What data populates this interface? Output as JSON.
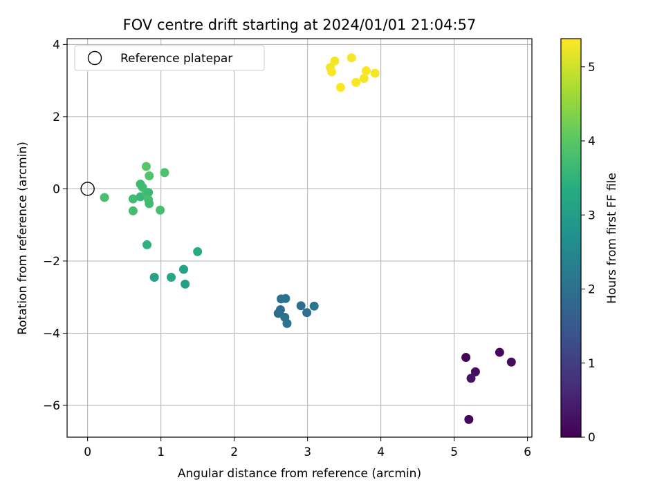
{
  "chart_data": {
    "type": "scatter",
    "title": "FOV centre drift starting at 2024/01/01 21:04:57",
    "xlabel": "Angular distance from reference (arcmin)",
    "ylabel": "Rotation from reference (arcmin)",
    "xlim": [
      -0.28,
      6.06
    ],
    "ylim": [
      -6.88,
      4.16
    ],
    "xticks": [
      0,
      1,
      2,
      3,
      4,
      5,
      6
    ],
    "yticks": [
      -6,
      -4,
      -2,
      0,
      2,
      4
    ],
    "grid": true,
    "legend": {
      "position": "top-left",
      "entries": [
        "Reference platepar"
      ]
    },
    "reference_point": {
      "x": 0,
      "y": 0
    },
    "colorbar": {
      "label": "Hours from first FF file",
      "colormap": "viridis",
      "range": [
        0,
        5.38
      ],
      "ticks": [
        0,
        1,
        2,
        3,
        4,
        5
      ]
    },
    "series": [
      {
        "points": [
          {
            "x": 5.16,
            "y": -4.67,
            "c": 0.05
          },
          {
            "x": 5.62,
            "y": -4.53,
            "c": 0.1
          },
          {
            "x": 5.78,
            "y": -4.8,
            "c": 0.15
          },
          {
            "x": 5.29,
            "y": -5.07,
            "c": 0.2
          },
          {
            "x": 5.23,
            "y": -5.25,
            "c": 0.3
          },
          {
            "x": 5.2,
            "y": -6.39,
            "c": 0.1
          },
          {
            "x": 2.64,
            "y": -3.05,
            "c": 2.0
          },
          {
            "x": 2.7,
            "y": -3.04,
            "c": 2.05
          },
          {
            "x": 2.63,
            "y": -3.35,
            "c": 1.95
          },
          {
            "x": 2.6,
            "y": -3.45,
            "c": 1.9
          },
          {
            "x": 2.69,
            "y": -3.56,
            "c": 2.0
          },
          {
            "x": 2.72,
            "y": -3.73,
            "c": 2.05
          },
          {
            "x": 2.91,
            "y": -3.24,
            "c": 2.0
          },
          {
            "x": 3.09,
            "y": -3.25,
            "c": 2.1
          },
          {
            "x": 2.99,
            "y": -3.43,
            "c": 1.95
          },
          {
            "x": 0.91,
            "y": -2.45,
            "c": 3.1
          },
          {
            "x": 1.14,
            "y": -2.45,
            "c": 3.2
          },
          {
            "x": 1.31,
            "y": -2.23,
            "c": 3.15
          },
          {
            "x": 1.33,
            "y": -2.64,
            "c": 3.05
          },
          {
            "x": 1.5,
            "y": -1.74,
            "c": 3.35
          },
          {
            "x": 0.81,
            "y": -1.55,
            "c": 3.45
          },
          {
            "x": 0.23,
            "y": -0.24,
            "c": 3.8
          },
          {
            "x": 0.62,
            "y": -0.28,
            "c": 3.7
          },
          {
            "x": 0.62,
            "y": -0.61,
            "c": 3.75
          },
          {
            "x": 0.72,
            "y": 0.13,
            "c": 3.65
          },
          {
            "x": 0.75,
            "y": 0.04,
            "c": 3.7
          },
          {
            "x": 0.72,
            "y": -0.22,
            "c": 3.6
          },
          {
            "x": 0.8,
            "y": -0.12,
            "c": 3.75
          },
          {
            "x": 0.83,
            "y": -0.1,
            "c": 3.65
          },
          {
            "x": 0.83,
            "y": -0.3,
            "c": 3.8
          },
          {
            "x": 0.84,
            "y": -0.41,
            "c": 3.7
          },
          {
            "x": 0.84,
            "y": 0.36,
            "c": 3.9
          },
          {
            "x": 0.8,
            "y": 0.62,
            "c": 3.95
          },
          {
            "x": 1.05,
            "y": 0.45,
            "c": 3.85
          },
          {
            "x": 0.99,
            "y": -0.59,
            "c": 3.8
          },
          {
            "x": 3.31,
            "y": 3.36,
            "c": 5.3
          },
          {
            "x": 3.33,
            "y": 3.24,
            "c": 5.35
          },
          {
            "x": 3.37,
            "y": 3.54,
            "c": 5.3
          },
          {
            "x": 3.45,
            "y": 2.81,
            "c": 5.35
          },
          {
            "x": 3.6,
            "y": 3.63,
            "c": 5.3
          },
          {
            "x": 3.66,
            "y": 2.95,
            "c": 5.35
          },
          {
            "x": 3.77,
            "y": 3.06,
            "c": 5.3
          },
          {
            "x": 3.8,
            "y": 3.27,
            "c": 5.35
          },
          {
            "x": 3.92,
            "y": 3.2,
            "c": 5.3
          }
        ]
      }
    ]
  }
}
